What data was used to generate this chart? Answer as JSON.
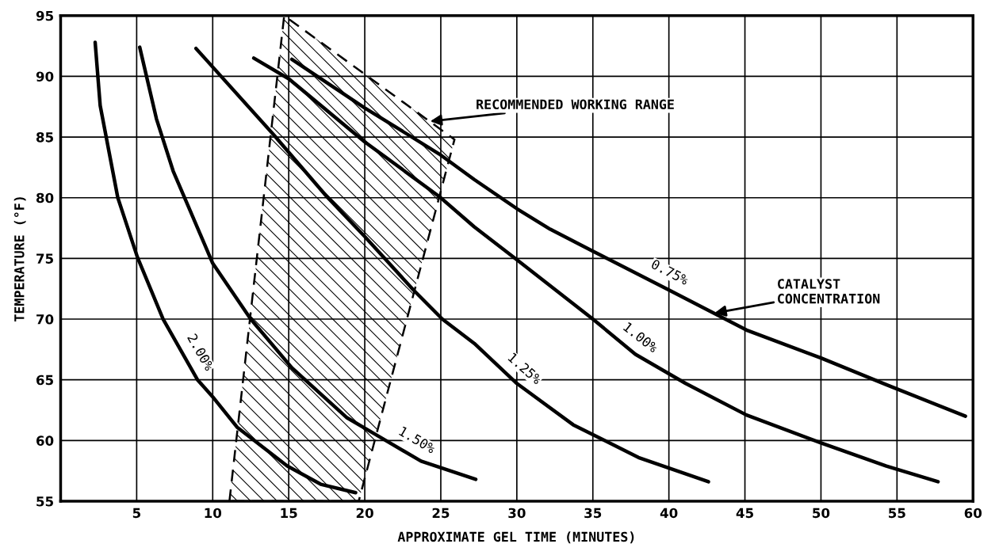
{
  "chart_data": {
    "type": "line",
    "xlabel": "APPROXIMATE GEL TIME (MINUTES)",
    "ylabel": "TEMPERATURE (°F)",
    "xlim": [
      0,
      60
    ],
    "xticks": [
      5,
      10,
      15,
      20,
      25,
      30,
      35,
      40,
      45,
      50,
      55,
      60
    ],
    "ylim": [
      55,
      95
    ],
    "yticks": [
      55,
      60,
      65,
      70,
      75,
      80,
      85,
      90,
      95
    ],
    "grid": true,
    "legend": false,
    "marker": "none",
    "line_style": "solid",
    "series": [
      {
        "name": "2.00%",
        "color": "#000000",
        "x": [
          2.27,
          2.6,
          3.76,
          5.05,
          6.74,
          9.0,
          10.0,
          11.6,
          14.9,
          17.1,
          19.4
        ],
        "values": [
          92.8,
          87.6,
          80.0,
          75.1,
          70.0,
          65.0,
          63.6,
          61.1,
          57.9,
          56.4,
          55.7
        ]
      },
      {
        "name": "1.50%",
        "color": "#000000",
        "x": [
          5.2,
          6.3,
          7.4,
          10.0,
          12.5,
          15.2,
          18.8,
          20.7,
          23.7,
          27.3
        ],
        "values": [
          92.4,
          86.5,
          82.2,
          74.6,
          70.0,
          66.0,
          61.9,
          60.5,
          58.3,
          56.8
        ]
      },
      {
        "name": "1.25%",
        "color": "#000000",
        "x": [
          8.9,
          14.0,
          17.5,
          20.0,
          23.2,
          25.1,
          27.2,
          30.0,
          33.7,
          38.0,
          42.6
        ],
        "values": [
          92.3,
          85.2,
          80.1,
          76.8,
          72.4,
          70.0,
          68.0,
          64.7,
          61.3,
          58.6,
          56.6
        ]
      },
      {
        "name": "1.00%",
        "color": "#000000",
        "x": [
          12.7,
          15.0,
          20.0,
          24.9,
          27.2,
          30.0,
          35.0,
          37.8,
          41.1,
          45.1,
          50.0,
          54.3,
          57.7
        ],
        "values": [
          91.5,
          89.8,
          84.6,
          80.1,
          77.6,
          74.9,
          70.0,
          67.1,
          64.7,
          62.1,
          59.8,
          57.9,
          56.6
        ]
      },
      {
        "name": "0.75%",
        "color": "#000000",
        "x": [
          15.2,
          20.0,
          24.9,
          27.2,
          30.0,
          32.2,
          35.0,
          40.0,
          45.1,
          50.0,
          54.3,
          59.5
        ],
        "values": [
          91.4,
          87.4,
          83.6,
          81.5,
          79.1,
          77.4,
          75.6,
          72.4,
          69.1,
          66.8,
          64.6,
          62.0
        ]
      },
      {
        "type": "area",
        "color": "#000000",
        "line_style": "dashed",
        "x": [
          11.1,
          14.7,
          25.9,
          19.6
        ],
        "values": [
          55,
          95,
          84.8,
          55
        ]
      }
    ],
    "annotations": [
      {
        "text": "RECOMMENDED WORKING RANGE",
        "x": 24.3,
        "y": 86.3
      },
      {
        "text": "CATALYST\nCONCENTRATION",
        "x": 43.0,
        "y": 70.5
      }
    ]
  }
}
